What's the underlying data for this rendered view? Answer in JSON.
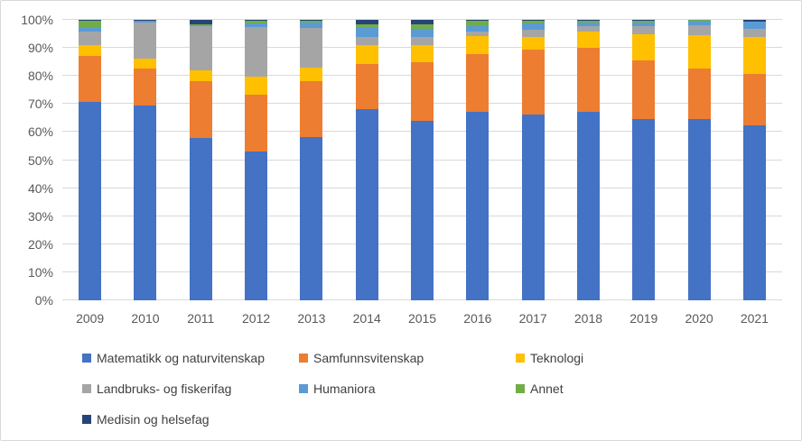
{
  "chart_data": {
    "type": "bar",
    "subtype": "stacked-100-percent",
    "title": "",
    "xlabel": "",
    "ylabel": "",
    "ylim": [
      0,
      100
    ],
    "grid": true,
    "legend_position": "bottom",
    "yticks": [
      "0%",
      "10%",
      "20%",
      "30%",
      "40%",
      "50%",
      "60%",
      "70%",
      "80%",
      "90%",
      "100%"
    ],
    "categories": [
      "2009",
      "2010",
      "2011",
      "2012",
      "2013",
      "2014",
      "2015",
      "2016",
      "2017",
      "2018",
      "2019",
      "2020",
      "2021"
    ],
    "series": [
      {
        "name": "Matematikk og naturvitenskap",
        "color": "#4472C4",
        "values": [
          70.8,
          69.6,
          58.0,
          53.2,
          58.3,
          68.3,
          63.9,
          67.2,
          66.3,
          67.2,
          64.5,
          64.6,
          62.4
        ]
      },
      {
        "name": "Samfunnsvitenskap",
        "color": "#ED7D31",
        "values": [
          16.3,
          13.0,
          20.1,
          20.1,
          19.8,
          15.9,
          21.0,
          20.6,
          23.1,
          22.8,
          20.9,
          18.0,
          18.4
        ]
      },
      {
        "name": "Teknologi",
        "color": "#FFC000",
        "values": [
          3.9,
          3.6,
          3.9,
          6.4,
          4.9,
          6.8,
          6.1,
          6.4,
          4.5,
          5.8,
          9.5,
          11.9,
          13.1
        ]
      },
      {
        "name": "Landbruks- og fiskerifag",
        "color": "#A5A5A5",
        "values": [
          4.8,
          12.8,
          15.7,
          17.7,
          14.1,
          2.9,
          2.9,
          1.6,
          2.6,
          1.9,
          2.8,
          3.6,
          2.9
        ]
      },
      {
        "name": "Humaniora",
        "color": "#5B9BD5",
        "values": [
          1.6,
          0.6,
          0.5,
          1.3,
          1.9,
          3.2,
          2.9,
          1.9,
          2.2,
          1.3,
          1.5,
          1.6,
          2.5
        ]
      },
      {
        "name": "Annet",
        "color": "#70AD47",
        "values": [
          2.3,
          0.2,
          0.2,
          1.1,
          0.8,
          1.3,
          1.6,
          2.0,
          1.1,
          0.8,
          0.6,
          0.2,
          0.1
        ]
      },
      {
        "name": "Medisin og helsefag",
        "color": "#264478",
        "values": [
          0.3,
          0.2,
          1.6,
          0.2,
          0.2,
          1.6,
          1.6,
          0.3,
          0.2,
          0.2,
          0.2,
          0.1,
          0.6
        ]
      }
    ],
    "colors": {
      "gridline": "#d9d9d9",
      "axis_text": "#595959",
      "legend_text": "#404040",
      "chart_border": "#d9d9d9",
      "background": "#ffffff"
    }
  }
}
